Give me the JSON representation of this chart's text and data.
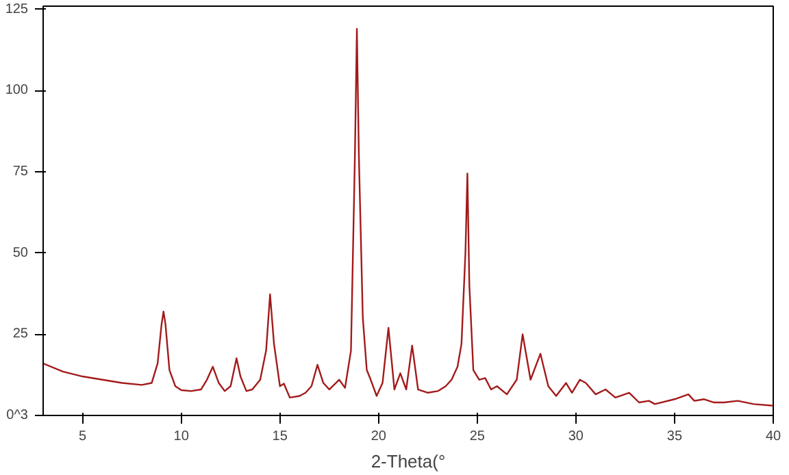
{
  "chart_data": {
    "type": "line",
    "xlabel": "2-Theta(°",
    "series": [
      {
        "color": "#a31a1a",
        "x": [
          3,
          4,
          5,
          6,
          7,
          8,
          8.5,
          8.8,
          9.0,
          9.1,
          9.2,
          9.4,
          9.7,
          10,
          10.5,
          11,
          11.3,
          11.6,
          11.9,
          12.2,
          12.5,
          12.8,
          13.0,
          13.3,
          13.6,
          14.0,
          14.3,
          14.5,
          14.7,
          15.0,
          15.2,
          15.5,
          16.0,
          16.3,
          16.6,
          16.9,
          17.2,
          17.5,
          18.0,
          18.3,
          18.6,
          18.8,
          18.9,
          19.0,
          19.2,
          19.4,
          19.6,
          19.9,
          20.2,
          20.5,
          20.8,
          21.1,
          21.4,
          21.7,
          22.0,
          22.5,
          23.0,
          23.4,
          23.7,
          24.0,
          24.2,
          24.4,
          24.5,
          24.6,
          24.8,
          25.1,
          25.4,
          25.7,
          26.0,
          26.5,
          27.0,
          27.3,
          27.7,
          28.2,
          28.6,
          29.0,
          29.5,
          29.8,
          30.2,
          30.5,
          31.0,
          31.5,
          32.0,
          32.7,
          33.2,
          33.7,
          34.0,
          35.0,
          35.7,
          36.0,
          36.5,
          37.0,
          37.5,
          38.2,
          39.0,
          40
        ],
        "values": [
          16,
          13.5,
          12,
          11,
          10,
          9.4,
          10,
          16,
          28,
          32,
          28,
          14,
          9,
          7.8,
          7.5,
          8,
          11,
          15,
          10,
          7.5,
          9,
          17.6,
          12,
          7.5,
          8,
          11,
          20,
          37.3,
          22,
          9,
          9.8,
          5.5,
          6,
          7,
          9,
          15.6,
          10,
          8,
          11,
          8.5,
          20,
          80,
          119,
          80,
          30,
          14,
          11,
          6,
          10,
          27,
          8,
          13,
          8,
          21.5,
          8,
          7,
          7.5,
          9,
          11,
          15,
          22,
          50,
          74.5,
          40,
          14,
          11,
          11.5,
          8,
          9,
          6.5,
          11,
          25,
          11,
          19,
          9,
          6,
          10,
          7,
          11,
          10,
          6.5,
          8,
          5.5,
          7,
          4,
          4.5,
          3.5,
          5,
          6.5,
          4.5,
          5,
          4,
          4,
          4.5,
          3.5,
          3
        ]
      }
    ],
    "xlim": [
      3,
      40
    ],
    "xticks": [
      5,
      10,
      15,
      20,
      25,
      30,
      35,
      40
    ],
    "ylim": [
      0,
      126
    ],
    "yticks": [
      {
        "value": 0,
        "label": "0^3"
      },
      25,
      50,
      75,
      100,
      125
    ],
    "grid": false
  }
}
